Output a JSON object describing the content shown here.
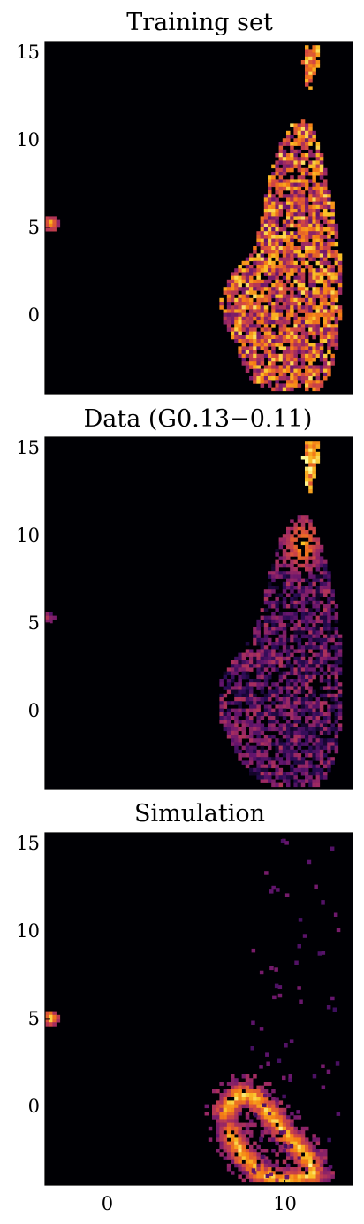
{
  "chart_data": [
    {
      "type": "heatmap",
      "title": "Training set",
      "xlim": [
        -3.5,
        13.8
      ],
      "ylim": [
        -4.5,
        15.6
      ],
      "xticks": [],
      "yticks": [
        15,
        10,
        5,
        0
      ],
      "colormap": "inferno",
      "background": "#000004",
      "regions": [
        {
          "shape": "blob",
          "outline": [
            [
              10.9,
              11.2
            ],
            [
              11.5,
              10.8
            ],
            [
              11.9,
              9.8
            ],
            [
              12.3,
              8.2
            ],
            [
              12.8,
              6
            ],
            [
              13.1,
              3.5
            ],
            [
              13.2,
              1
            ],
            [
              13.0,
              -1.5
            ],
            [
              12.6,
              -3.2
            ],
            [
              11.9,
              -4.4
            ],
            [
              10.2,
              -4.5
            ],
            [
              8.2,
              -3.9
            ],
            [
              7.4,
              -2.2
            ],
            [
              6.6,
              -0.5
            ],
            [
              6.2,
              1.2
            ],
            [
              6.9,
              2.4
            ],
            [
              8.2,
              3.5
            ],
            [
              8.7,
              5.5
            ],
            [
              9.0,
              7.5
            ],
            [
              9.6,
              9.5
            ],
            [
              10.3,
              10.8
            ]
          ],
          "density": 0.85,
          "intensity": 0.62,
          "spread": 0.32
        },
        {
          "shape": "blob",
          "outline": [
            [
              11.2,
              15.4
            ],
            [
              11.9,
              15.4
            ],
            [
              11.9,
              14.2
            ],
            [
              11.6,
              13.4
            ],
            [
              11.4,
              12.6
            ],
            [
              11.1,
              13.3
            ],
            [
              11.0,
              14.5
            ]
          ],
          "density": 0.9,
          "intensity": 0.75,
          "spread": 0.2
        },
        {
          "shape": "spot",
          "cx": -3.2,
          "cy": 5.2,
          "r": 0.45,
          "intensity": 0.92
        }
      ]
    },
    {
      "type": "heatmap",
      "title": "Data (G0.13−0.11)",
      "xlim": [
        -3.5,
        13.8
      ],
      "ylim": [
        -4.5,
        15.6
      ],
      "xticks": [],
      "yticks": [
        15,
        10,
        5,
        0
      ],
      "colormap": "inferno",
      "background": "#000004",
      "regions": [
        {
          "shape": "blob",
          "outline": [
            [
              10.9,
              11.2
            ],
            [
              11.5,
              10.9
            ],
            [
              12.0,
              9.6
            ],
            [
              12.5,
              7.8
            ],
            [
              13.0,
              5.5
            ],
            [
              13.3,
              3
            ],
            [
              13.3,
              0
            ],
            [
              13.0,
              -2
            ],
            [
              12.5,
              -3.6
            ],
            [
              11.8,
              -4.5
            ],
            [
              10.0,
              -4.5
            ],
            [
              8.2,
              -3.9
            ],
            [
              7.2,
              -2.4
            ],
            [
              6.4,
              -0.8
            ],
            [
              6.2,
              1.5
            ],
            [
              7.0,
              2.8
            ],
            [
              8.0,
              4.0
            ],
            [
              8.7,
              5.8
            ],
            [
              9.0,
              7.5
            ],
            [
              9.6,
              9.5
            ],
            [
              10.3,
              10.8
            ]
          ],
          "density": 0.75,
          "intensity": 0.28,
          "spread": 0.22
        },
        {
          "shape": "glow",
          "cx": 11.0,
          "cy": 9.5,
          "rx": 1.2,
          "ry": 1.7,
          "intensity": 0.85
        },
        {
          "shape": "glow",
          "cx": 7.6,
          "cy": -1.3,
          "rx": 1.0,
          "ry": 0.9,
          "intensity": 0.5
        },
        {
          "shape": "blob",
          "outline": [
            [
              11.2,
              15.4
            ],
            [
              11.9,
              15.4
            ],
            [
              11.9,
              14.2
            ],
            [
              11.6,
              13.2
            ],
            [
              11.4,
              12.4
            ],
            [
              11.1,
              13.2
            ],
            [
              11.0,
              14.5
            ]
          ],
          "density": 0.95,
          "intensity": 0.82,
          "spread": 0.18
        },
        {
          "shape": "spot",
          "cx": -3.3,
          "cy": 5.3,
          "r": 0.35,
          "intensity": 0.55
        }
      ]
    },
    {
      "type": "heatmap",
      "title": "Simulation",
      "xlim": [
        -3.5,
        13.8
      ],
      "ylim": [
        -4.5,
        15.6
      ],
      "xticks": [
        0,
        10
      ],
      "yticks": [
        15,
        10,
        5,
        0
      ],
      "colormap": "inferno",
      "background": "#000004",
      "regions": [
        {
          "shape": "arc",
          "points": [
            [
              6.6,
              -0.3
            ],
            [
              7.4,
              0.7
            ],
            [
              8.3,
              0.5
            ],
            [
              9.1,
              -0.4
            ],
            [
              9.9,
              -1.4
            ],
            [
              10.6,
              -2.2
            ],
            [
              11.3,
              -3.0
            ],
            [
              11.6,
              -3.9
            ],
            [
              10.2,
              -4.3
            ],
            [
              8.7,
              -3.9
            ],
            [
              7.6,
              -2.8
            ],
            [
              6.9,
              -1.5
            ]
          ],
          "width": 0.75,
          "intensity": 0.9
        },
        {
          "shape": "sparse",
          "x": [
            8.0,
            13.0
          ],
          "y": [
            -4.0,
            15.5
          ],
          "count": 70,
          "intensity": 0.28
        },
        {
          "shape": "spot",
          "cx": -3.2,
          "cy": 5.0,
          "r": 0.45,
          "intensity": 0.95
        }
      ]
    }
  ]
}
